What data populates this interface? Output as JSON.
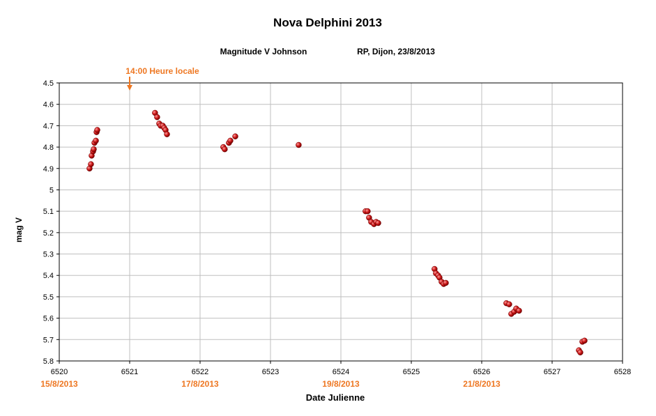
{
  "chart_data": {
    "type": "scatter",
    "title": "Nova Delphini 2013",
    "subtitle_left": "Magnitude V Johnson",
    "subtitle_right": "RP, Dijon, 23/8/2013",
    "xlabel": "Date Julienne",
    "ylabel": "mag V",
    "xlim": [
      6520,
      6528
    ],
    "ylim": [
      4.5,
      5.8
    ],
    "y_inverted": true,
    "grid": true,
    "x_ticks": [
      "6520",
      "6521",
      "6522",
      "6523",
      "6524",
      "6525",
      "6526",
      "6527",
      "6528"
    ],
    "y_ticks": [
      "4.5",
      "4.6",
      "4.7",
      "4.8",
      "4.9",
      "5",
      "5.1",
      "5.2",
      "5.3",
      "5.4",
      "5.5",
      "5.6",
      "5.7",
      "5.8"
    ],
    "date_labels": [
      {
        "x": 6520,
        "text": "15/8/2013"
      },
      {
        "x": 6522,
        "text": "17/8/2013"
      },
      {
        "x": 6524,
        "text": "19/8/2013"
      },
      {
        "x": 6526,
        "text": "21/8/2013"
      }
    ],
    "annotation": {
      "x": 6521,
      "text": "14:00 Heure locale"
    },
    "series": [
      {
        "name": "mag V",
        "color": "#cc1a1a",
        "points": [
          [
            6520.43,
            4.9
          ],
          [
            6520.45,
            4.88
          ],
          [
            6520.46,
            4.84
          ],
          [
            6520.48,
            4.82
          ],
          [
            6520.49,
            4.81
          ],
          [
            6520.5,
            4.78
          ],
          [
            6520.52,
            4.77
          ],
          [
            6520.53,
            4.73
          ],
          [
            6520.54,
            4.72
          ],
          [
            6521.36,
            4.64
          ],
          [
            6521.39,
            4.66
          ],
          [
            6521.42,
            4.69
          ],
          [
            6521.44,
            4.7
          ],
          [
            6521.47,
            4.7
          ],
          [
            6521.49,
            4.71
          ],
          [
            6521.51,
            4.72
          ],
          [
            6521.53,
            4.74
          ],
          [
            6522.33,
            4.8
          ],
          [
            6522.35,
            4.81
          ],
          [
            6522.41,
            4.78
          ],
          [
            6522.43,
            4.77
          ],
          [
            6522.5,
            4.75
          ],
          [
            6523.4,
            4.79
          ],
          [
            6524.35,
            5.1
          ],
          [
            6524.38,
            5.1
          ],
          [
            6524.4,
            5.13
          ],
          [
            6524.43,
            5.15
          ],
          [
            6524.47,
            5.16
          ],
          [
            6524.5,
            5.15
          ],
          [
            6524.53,
            5.155
          ],
          [
            6525.33,
            5.37
          ],
          [
            6525.35,
            5.39
          ],
          [
            6525.38,
            5.4
          ],
          [
            6525.4,
            5.41
          ],
          [
            6525.43,
            5.43
          ],
          [
            6525.46,
            5.44
          ],
          [
            6525.49,
            5.435
          ],
          [
            6526.35,
            5.53
          ],
          [
            6526.39,
            5.535
          ],
          [
            6526.42,
            5.58
          ],
          [
            6526.46,
            5.57
          ],
          [
            6526.49,
            5.555
          ],
          [
            6526.53,
            5.565
          ],
          [
            6527.38,
            5.75
          ],
          [
            6527.4,
            5.76
          ],
          [
            6527.43,
            5.71
          ],
          [
            6527.46,
            5.705
          ]
        ]
      }
    ]
  },
  "colors": {
    "accent": "#ee7722",
    "marker": "#cc1a1a",
    "marker_highlight": "#ff9a9a",
    "grid": "#bfbfbf"
  }
}
